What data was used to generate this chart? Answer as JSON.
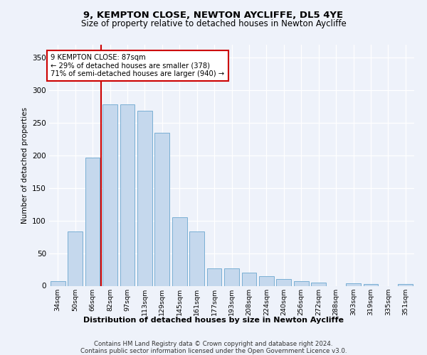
{
  "title1": "9, KEMPTON CLOSE, NEWTON AYCLIFFE, DL5 4YE",
  "title2": "Size of property relative to detached houses in Newton Aycliffe",
  "xlabel": "Distribution of detached houses by size in Newton Aycliffe",
  "ylabel": "Number of detached properties",
  "categories": [
    "34sqm",
    "50sqm",
    "66sqm",
    "82sqm",
    "97sqm",
    "113sqm",
    "129sqm",
    "145sqm",
    "161sqm",
    "177sqm",
    "193sqm",
    "208sqm",
    "224sqm",
    "240sqm",
    "256sqm",
    "272sqm",
    "288sqm",
    "303sqm",
    "319sqm",
    "335sqm",
    "351sqm"
  ],
  "values": [
    7,
    83,
    196,
    278,
    278,
    268,
    235,
    105,
    83,
    27,
    27,
    20,
    15,
    10,
    7,
    5,
    0,
    4,
    3,
    0,
    3
  ],
  "bar_color": "#c5d8ed",
  "bar_edge_color": "#7aafd4",
  "vline_color": "#cc0000",
  "annotation_text": "9 KEMPTON CLOSE: 87sqm\n← 29% of detached houses are smaller (378)\n71% of semi-detached houses are larger (940) →",
  "annotation_border_color": "#cc0000",
  "footer1": "Contains HM Land Registry data © Crown copyright and database right 2024.",
  "footer2": "Contains public sector information licensed under the Open Government Licence v3.0.",
  "ylim": [
    0,
    370
  ],
  "yticks": [
    0,
    50,
    100,
    150,
    200,
    250,
    300,
    350
  ],
  "bg_color": "#eef2fa"
}
